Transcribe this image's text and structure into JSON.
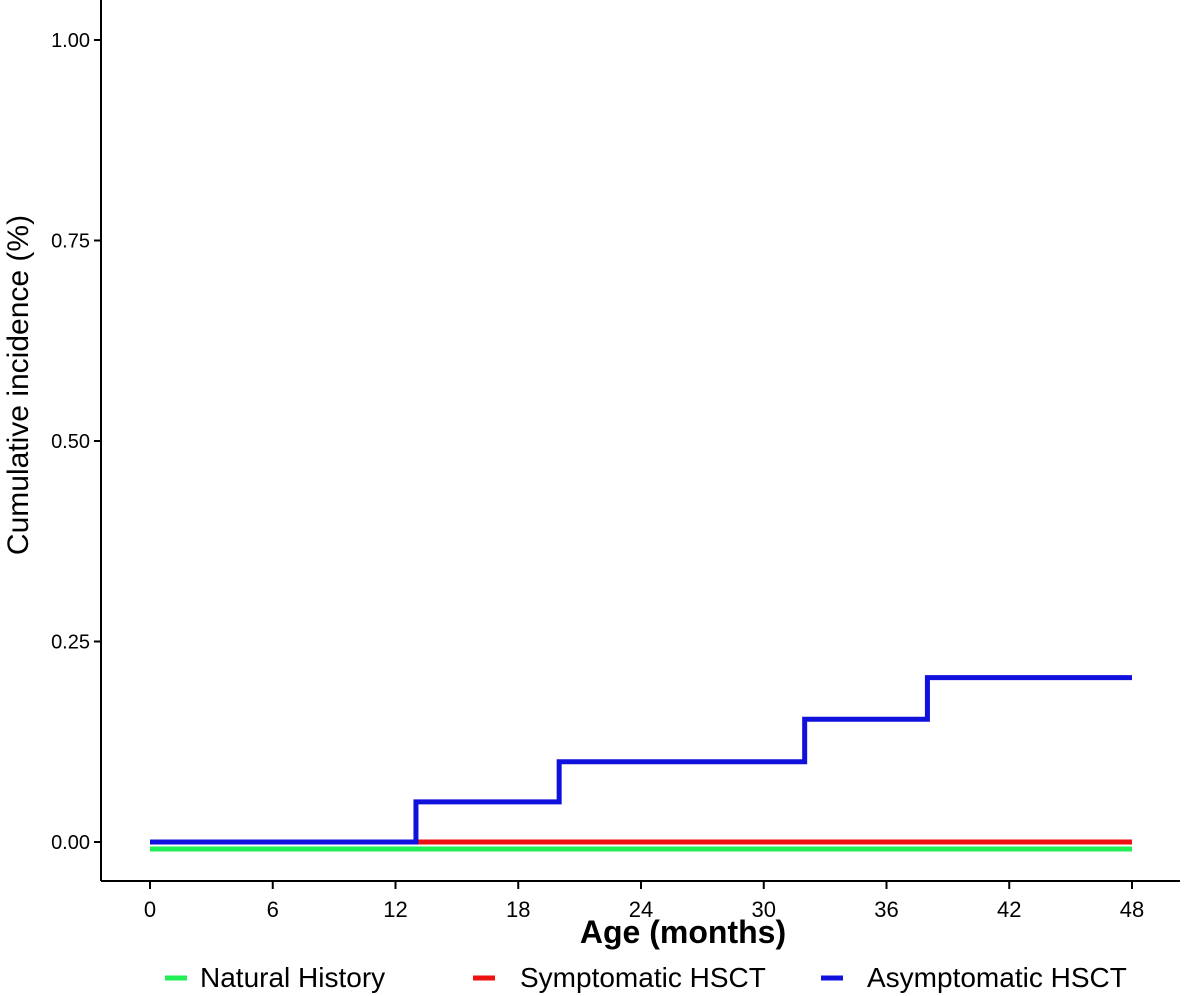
{
  "chart_data": {
    "type": "line",
    "step": true,
    "xlabel": "Age (months)",
    "ylabel": "Cumulative incidence (%)",
    "xlim": [
      0,
      48
    ],
    "ylim": [
      -0.05,
      1.05
    ],
    "xticks": [
      0,
      6,
      12,
      18,
      24,
      30,
      36,
      42,
      48
    ],
    "xtick_labels": [
      "0",
      "6",
      "12",
      "18",
      "24",
      "30",
      "36",
      "42",
      "48"
    ],
    "yticks": [
      0,
      0.25,
      0.5,
      0.75,
      1.0
    ],
    "ytick_labels": [
      "0.00",
      "0.25",
      "0.50",
      "0.75",
      "1.00"
    ],
    "grid": false,
    "legend_position": "bottom",
    "series": [
      {
        "name": "Natural History",
        "color": "#22ee55",
        "x": [
          0,
          48
        ],
        "y": [
          0,
          0
        ]
      },
      {
        "name": "Symptomatic HSCT",
        "color": "#ee1111",
        "x": [
          0,
          48
        ],
        "y": [
          0,
          0
        ]
      },
      {
        "name": "Asymptomatic HSCT",
        "color": "#1111dd",
        "x": [
          0,
          13,
          20,
          32,
          38,
          48
        ],
        "y": [
          0,
          0.05,
          0.1,
          0.153,
          0.205,
          0.205
        ]
      }
    ]
  }
}
